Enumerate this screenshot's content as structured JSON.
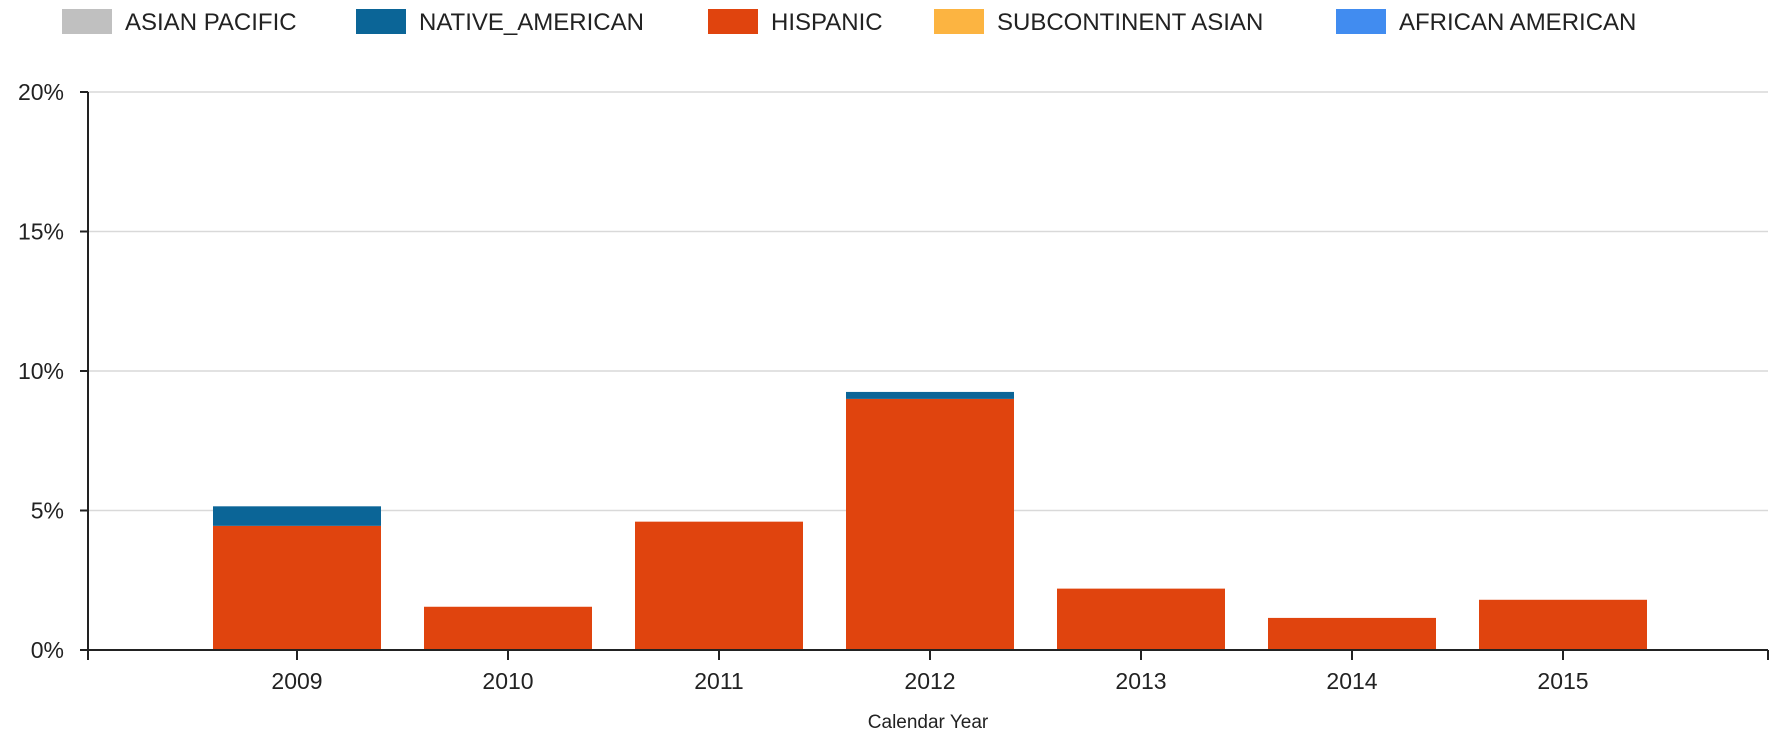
{
  "chart_data": {
    "type": "bar",
    "stacked": true,
    "categories": [
      "2009",
      "2010",
      "2011",
      "2012",
      "2013",
      "2014",
      "2015"
    ],
    "series": [
      {
        "name": "ASIAN PACIFIC",
        "color": "#c0c0c0",
        "values": [
          0,
          0,
          0,
          0,
          0,
          0,
          0
        ]
      },
      {
        "name": "NATIVE_AMERICAN",
        "color": "#0b6597",
        "values": [
          0.7,
          0,
          0,
          0.25,
          0,
          0,
          0
        ]
      },
      {
        "name": "HISPANIC",
        "color": "#e0440e",
        "values": [
          4.45,
          1.55,
          4.6,
          9.0,
          2.2,
          1.15,
          1.8
        ]
      },
      {
        "name": "SUBCONTINENT ASIAN",
        "color": "#fcb441",
        "values": [
          0,
          0,
          0,
          0,
          0,
          0,
          0
        ]
      },
      {
        "name": "AFRICAN AMERICAN",
        "color": "#418cf0",
        "values": [
          0,
          0,
          0,
          0,
          0,
          0,
          0
        ]
      }
    ],
    "stack_order": [
      "HISPANIC",
      "NATIVE_AMERICAN",
      "ASIAN PACIFIC",
      "SUBCONTINENT ASIAN",
      "AFRICAN AMERICAN"
    ],
    "xlabel": "Calendar Year",
    "ylabel": "",
    "ylim": [
      0,
      20
    ],
    "yticks": [
      0,
      5,
      10,
      15,
      20
    ],
    "ytick_labels": [
      "0%",
      "5%",
      "10%",
      "15%",
      "20%"
    ],
    "grid": true,
    "legend_position": "top"
  }
}
